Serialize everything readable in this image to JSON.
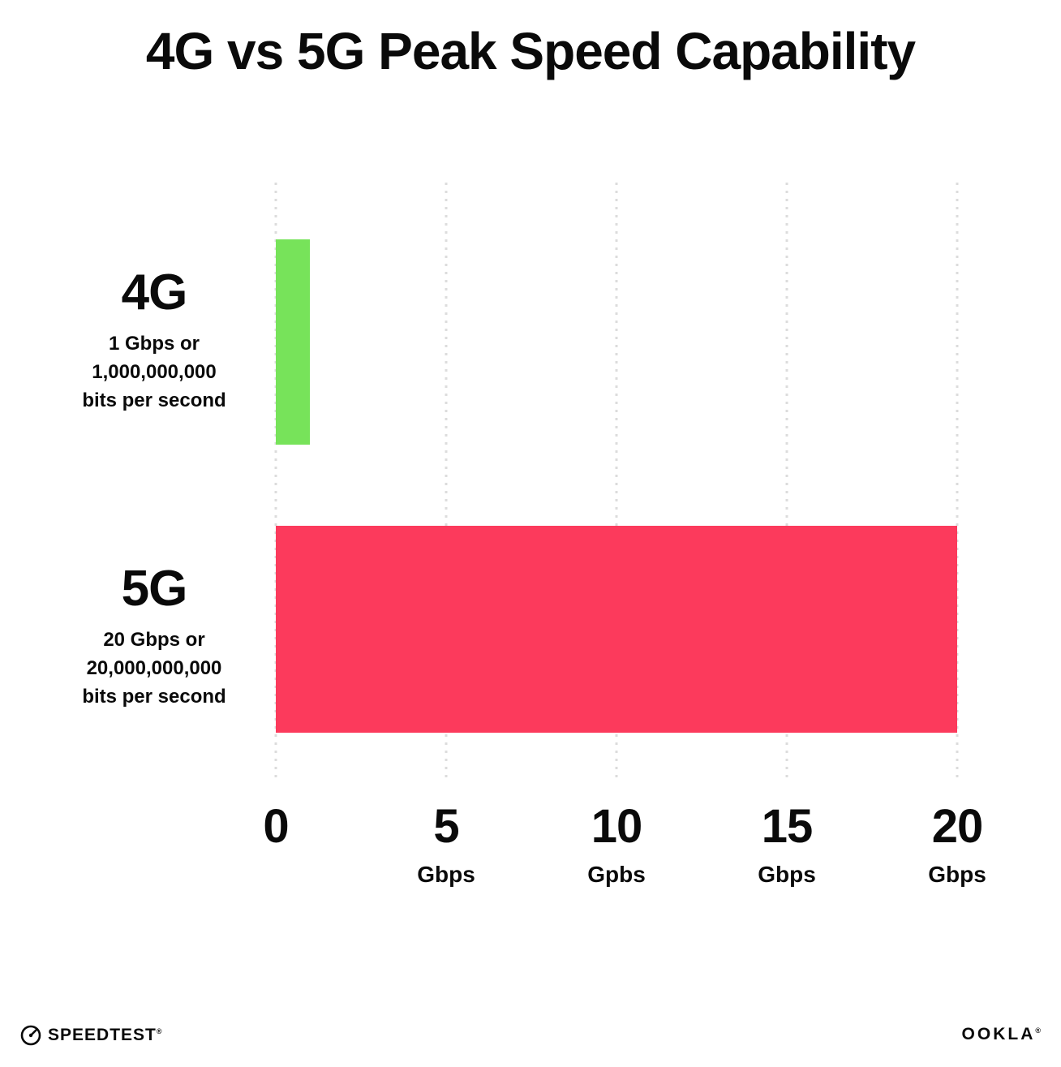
{
  "title": "4G vs 5G Peak Speed Capability",
  "chart_data": {
    "type": "bar",
    "orientation": "horizontal",
    "title": "4G vs 5G Peak Speed Capability",
    "xlabel": "Gbps",
    "ylabel": "",
    "xlim": [
      0,
      20
    ],
    "grid": "dotted vertical gridlines at 0, 5, 10, 15, 20",
    "legend_position": "none",
    "categories": [
      "4G",
      "5G"
    ],
    "values": [
      1,
      20
    ],
    "bars": [
      {
        "label": "4G",
        "value": 1,
        "color": "#77e35a",
        "sublabel_lines": [
          "1 Gbps or",
          "1,000,000,000",
          "bits per second"
        ]
      },
      {
        "label": "5G",
        "value": 20,
        "color": "#fc3a5c",
        "sublabel_lines": [
          "20 Gbps or",
          "20,000,000,000",
          "bits per second"
        ]
      }
    ],
    "x_ticks": [
      {
        "value": "0",
        "unit": ""
      },
      {
        "value": "5",
        "unit": "Gbps"
      },
      {
        "value": "10",
        "unit": "Gpbs"
      },
      {
        "value": "15",
        "unit": "Gbps"
      },
      {
        "value": "20",
        "unit": "Gbps"
      }
    ]
  },
  "footer": {
    "speedtest_label": "SPEEDTEST",
    "speedtest_mark": "®",
    "ookla_label": "OOKLA",
    "ookla_mark": "®"
  }
}
